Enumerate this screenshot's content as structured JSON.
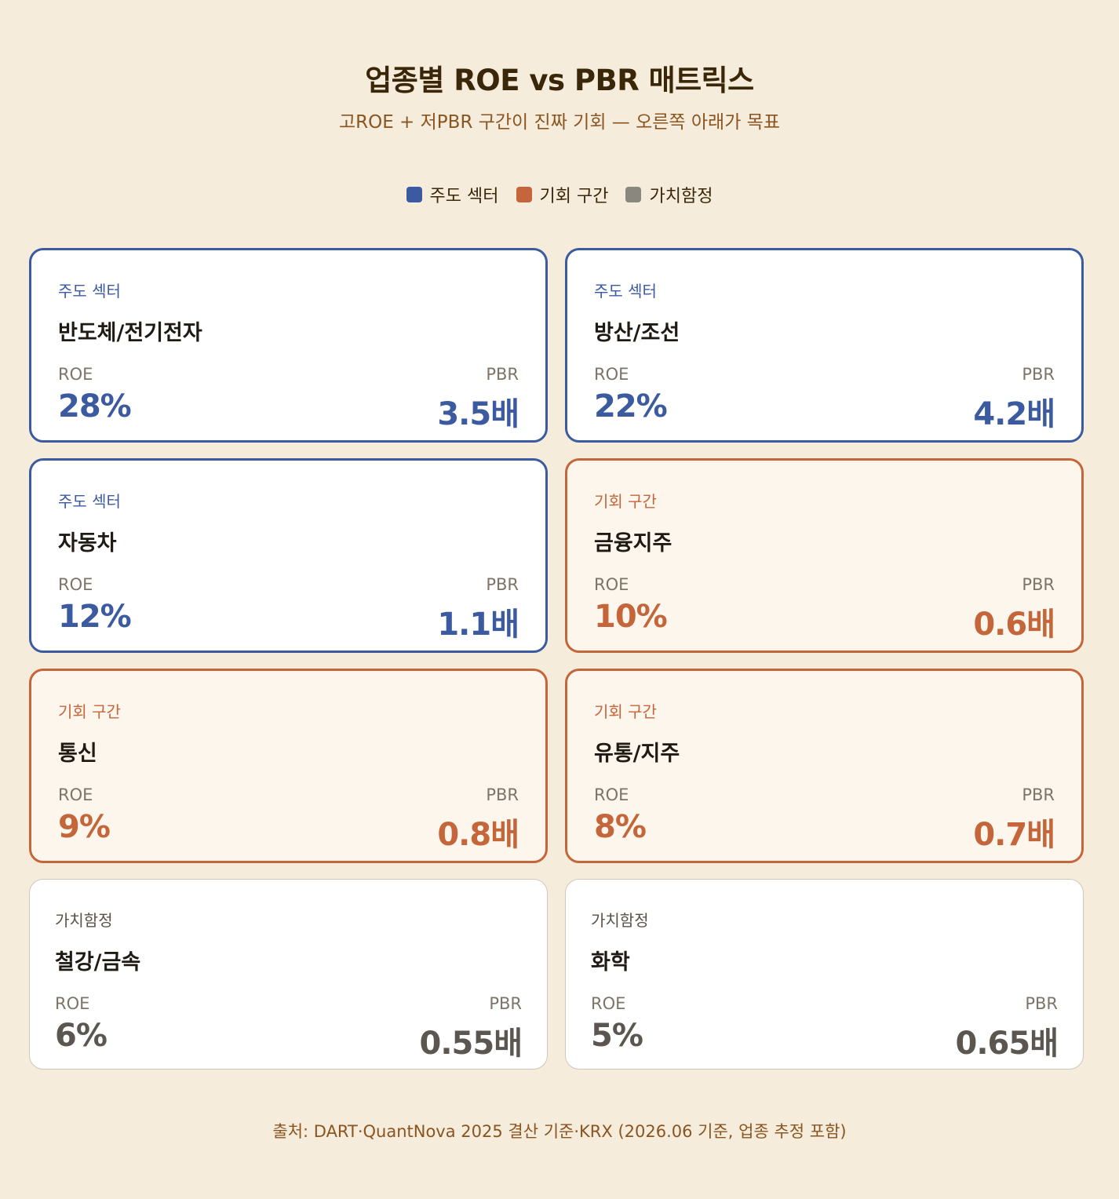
{
  "title": "업종별 ROE vs PBR 매트릭스",
  "subtitle": "고ROE + 저PBR 구간이 진짜 기회 — 오른쪽 아래가 목표",
  "legend": [
    {
      "label": "주도 섹터",
      "color": "#3b5aa0"
    },
    {
      "label": "기회 구간",
      "color": "#c4653a"
    },
    {
      "label": "가치함정",
      "color": "#8a877f"
    }
  ],
  "metric_labels": {
    "roe": "ROE",
    "pbr": "PBR"
  },
  "cards": [
    {
      "tag": "주도 섹터",
      "name": "반도체/전기전자",
      "roe": "28%",
      "pbr": "3.5배"
    },
    {
      "tag": "주도 섹터",
      "name": "방산/조선",
      "roe": "22%",
      "pbr": "4.2배"
    },
    {
      "tag": "주도 섹터",
      "name": "자동차",
      "roe": "12%",
      "pbr": "1.1배"
    },
    {
      "tag": "기회 구간",
      "name": "금융지주",
      "roe": "10%",
      "pbr": "0.6배"
    },
    {
      "tag": "기회 구간",
      "name": "통신",
      "roe": "9%",
      "pbr": "0.8배"
    },
    {
      "tag": "기회 구간",
      "name": "유통/지주",
      "roe": "8%",
      "pbr": "0.7배"
    },
    {
      "tag": "가치함정",
      "name": "철강/금속",
      "roe": "6%",
      "pbr": "0.55배"
    },
    {
      "tag": "가치함정",
      "name": "화학",
      "roe": "5%",
      "pbr": "0.65배"
    }
  ],
  "source": "출처: DART·QuantNova 2025 결산 기준·KRX (2026.06 기준, 업종 추정 포함)"
}
